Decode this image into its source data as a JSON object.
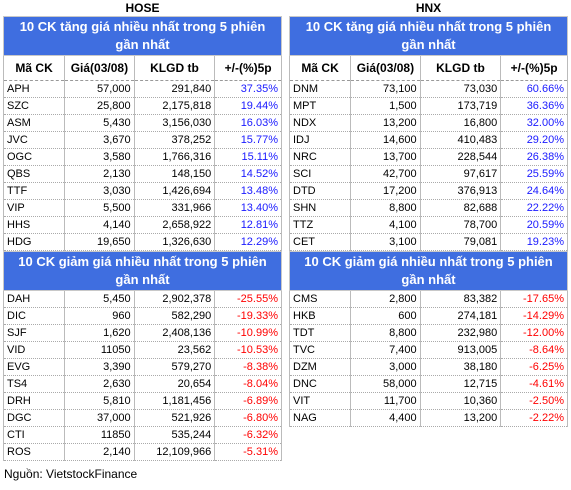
{
  "hose": {
    "title": "HOSE",
    "columns": [
      "Mã CK",
      "Giá(03/08)",
      "KLGD tb",
      "+/-(%)5p"
    ],
    "gainers": {
      "title": "10 CK tăng giá nhiều nhất trong 5 phiên gần nhất",
      "rows": [
        [
          "APH",
          "57,000",
          "291,840",
          "37.35%"
        ],
        [
          "SZC",
          "25,800",
          "2,175,818",
          "19.44%"
        ],
        [
          "ASM",
          "5,430",
          "3,156,030",
          "16.03%"
        ],
        [
          "JVC",
          "3,670",
          "378,252",
          "15.77%"
        ],
        [
          "OGC",
          "3,580",
          "1,766,316",
          "15.11%"
        ],
        [
          "QBS",
          "2,130",
          "148,150",
          "14.52%"
        ],
        [
          "TTF",
          "3,030",
          "1,426,694",
          "13.48%"
        ],
        [
          "VIP",
          "5,500",
          "331,966",
          "13.40%"
        ],
        [
          "HHS",
          "4,140",
          "2,658,922",
          "12.81%"
        ],
        [
          "HDG",
          "19,650",
          "1,326,630",
          "12.29%"
        ]
      ]
    },
    "losers": {
      "title": "10 CK giảm giá nhiều nhất trong 5 phiên gần nhất",
      "rows": [
        [
          "DAH",
          "5,450",
          "2,902,378",
          "-25.55%"
        ],
        [
          "DIC",
          "960",
          "582,290",
          "-19.33%"
        ],
        [
          "SJF",
          "1,620",
          "2,408,136",
          "-10.99%"
        ],
        [
          "VID",
          "11050",
          "23,562",
          "-10.53%"
        ],
        [
          "EVG",
          "3,390",
          "579,270",
          "-8.38%"
        ],
        [
          "TS4",
          "2,630",
          "20,654",
          "-8.04%"
        ],
        [
          "DRH",
          "5,810",
          "1,181,456",
          "-6.89%"
        ],
        [
          "DGC",
          "37,000",
          "521,926",
          "-6.80%"
        ],
        [
          "CTI",
          "11850",
          "535,244",
          "-6.32%"
        ],
        [
          "ROS",
          "2,140",
          "12,109,966",
          "-5.31%"
        ]
      ]
    }
  },
  "hnx": {
    "title": "HNX",
    "columns": [
      "Mã CK",
      "Giá(03/08)",
      "KLGD tb",
      "+/-(%)5p"
    ],
    "gainers": {
      "title": "10 CK tăng giá nhiều nhất trong 5 phiên gần nhất",
      "rows": [
        [
          "DNM",
          "73,100",
          "73,030",
          "60.66%"
        ],
        [
          "MPT",
          "1,500",
          "173,719",
          "36.36%"
        ],
        [
          "NDX",
          "13,200",
          "16,800",
          "32.00%"
        ],
        [
          "IDJ",
          "14,600",
          "410,483",
          "29.20%"
        ],
        [
          "NRC",
          "13,700",
          "228,544",
          "26.38%"
        ],
        [
          "SCI",
          "42,700",
          "97,617",
          "25.59%"
        ],
        [
          "DTD",
          "17,200",
          "376,913",
          "24.64%"
        ],
        [
          "SHN",
          "8,800",
          "82,688",
          "22.22%"
        ],
        [
          "TTZ",
          "4,100",
          "78,700",
          "20.59%"
        ],
        [
          "CET",
          "3,100",
          "79,081",
          "19.23%"
        ]
      ]
    },
    "losers": {
      "title": "10 CK giảm giá nhiều nhất trong 5 phiên gần nhất",
      "rows": [
        [
          "CMS",
          "2,800",
          "83,382",
          "-17.65%"
        ],
        [
          "HKB",
          "600",
          "274,181",
          "-14.29%"
        ],
        [
          "TDT",
          "8,800",
          "232,980",
          "-12.00%"
        ],
        [
          "TVC",
          "7,400",
          "913,005",
          "-8.64%"
        ],
        [
          "DZM",
          "3,000",
          "38,180",
          "-6.25%"
        ],
        [
          "DNC",
          "58,000",
          "12,715",
          "-4.61%"
        ],
        [
          "VIT",
          "11,700",
          "10,360",
          "-2.50%"
        ],
        [
          "NAG",
          "4,400",
          "13,200",
          "-2.22%"
        ]
      ]
    }
  },
  "source": "Nguồn: VietstockFinance"
}
